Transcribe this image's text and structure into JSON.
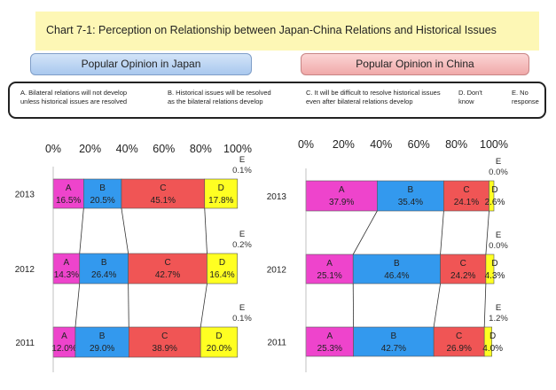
{
  "title": "Chart 7-1: Perception on Relationship between Japan-China Relations and Historical Issues",
  "panels": {
    "japan_label": "Popular Opinion in Japan",
    "china_label": "Popular Opinion in China"
  },
  "legend": [
    {
      "key": "A",
      "text": [
        "A. Bilateral relations will not develop",
        "unless historical issues are resolved"
      ]
    },
    {
      "key": "B",
      "text": [
        "B. Historical issues will be resolved",
        "as the bilateral relations develop"
      ]
    },
    {
      "key": "C",
      "text": [
        "C. It will be difficult to resolve historical issues",
        "even after bilateral relations develop"
      ]
    },
    {
      "key": "D",
      "text": [
        "D. Don't",
        "know"
      ]
    },
    {
      "key": "E",
      "text": [
        "E. No",
        "response"
      ]
    }
  ],
  "colors": {
    "A": "#ee44cc",
    "B": "#3399ee",
    "C": "#f05555",
    "D": "#ffff22",
    "E": "#ffffff"
  },
  "chart_data": [
    {
      "type": "bar",
      "stacked": true,
      "orientation": "horizontal",
      "panel": "Popular Opinion in Japan",
      "categories": [
        "2013",
        "2012",
        "2011"
      ],
      "xlim": [
        0,
        100
      ],
      "x_ticks": [
        "0%",
        "20%",
        "40%",
        "60%",
        "80%",
        "100%"
      ],
      "series": [
        {
          "name": "A",
          "values": [
            16.5,
            14.3,
            12.0
          ],
          "labels": [
            "16.5%",
            "14.3%",
            "12.0%"
          ]
        },
        {
          "name": "B",
          "values": [
            20.5,
            26.4,
            29.0
          ],
          "labels": [
            "20.5%",
            "26.4%",
            "29.0%"
          ]
        },
        {
          "name": "C",
          "values": [
            45.1,
            42.7,
            38.9
          ],
          "labels": [
            "45.1%",
            "42.7%",
            "38.9%"
          ]
        },
        {
          "name": "D",
          "values": [
            17.8,
            16.4,
            20.0
          ],
          "labels": [
            "17.8%",
            "16.4%",
            "20.0%"
          ]
        },
        {
          "name": "E",
          "values": [
            0.1,
            0.2,
            0.1
          ],
          "labels": [
            "0.1%",
            "0.2%",
            "0.1%"
          ]
        }
      ]
    },
    {
      "type": "bar",
      "stacked": true,
      "orientation": "horizontal",
      "panel": "Popular Opinion in China",
      "categories": [
        "2013",
        "2012",
        "2011"
      ],
      "xlim": [
        0,
        100
      ],
      "x_ticks": [
        "0%",
        "20%",
        "40%",
        "60%",
        "80%",
        "100%"
      ],
      "series": [
        {
          "name": "A",
          "values": [
            37.9,
            25.1,
            25.3
          ],
          "labels": [
            "37.9%",
            "25.1%",
            "25.3%"
          ]
        },
        {
          "name": "B",
          "values": [
            35.4,
            46.4,
            42.7
          ],
          "labels": [
            "35.4%",
            "46.4%",
            "42.7%"
          ]
        },
        {
          "name": "C",
          "values": [
            24.1,
            24.2,
            26.9
          ],
          "labels": [
            "24.1%",
            "24.2%",
            "26.9%"
          ]
        },
        {
          "name": "D",
          "values": [
            2.6,
            4.3,
            4.0
          ],
          "labels": [
            "2.6%",
            "4.3%",
            "4.0%"
          ]
        },
        {
          "name": "E",
          "values": [
            0.0,
            0.0,
            1.2
          ],
          "labels": [
            "0.0%",
            "0.0%",
            "1.2%"
          ]
        }
      ]
    }
  ]
}
